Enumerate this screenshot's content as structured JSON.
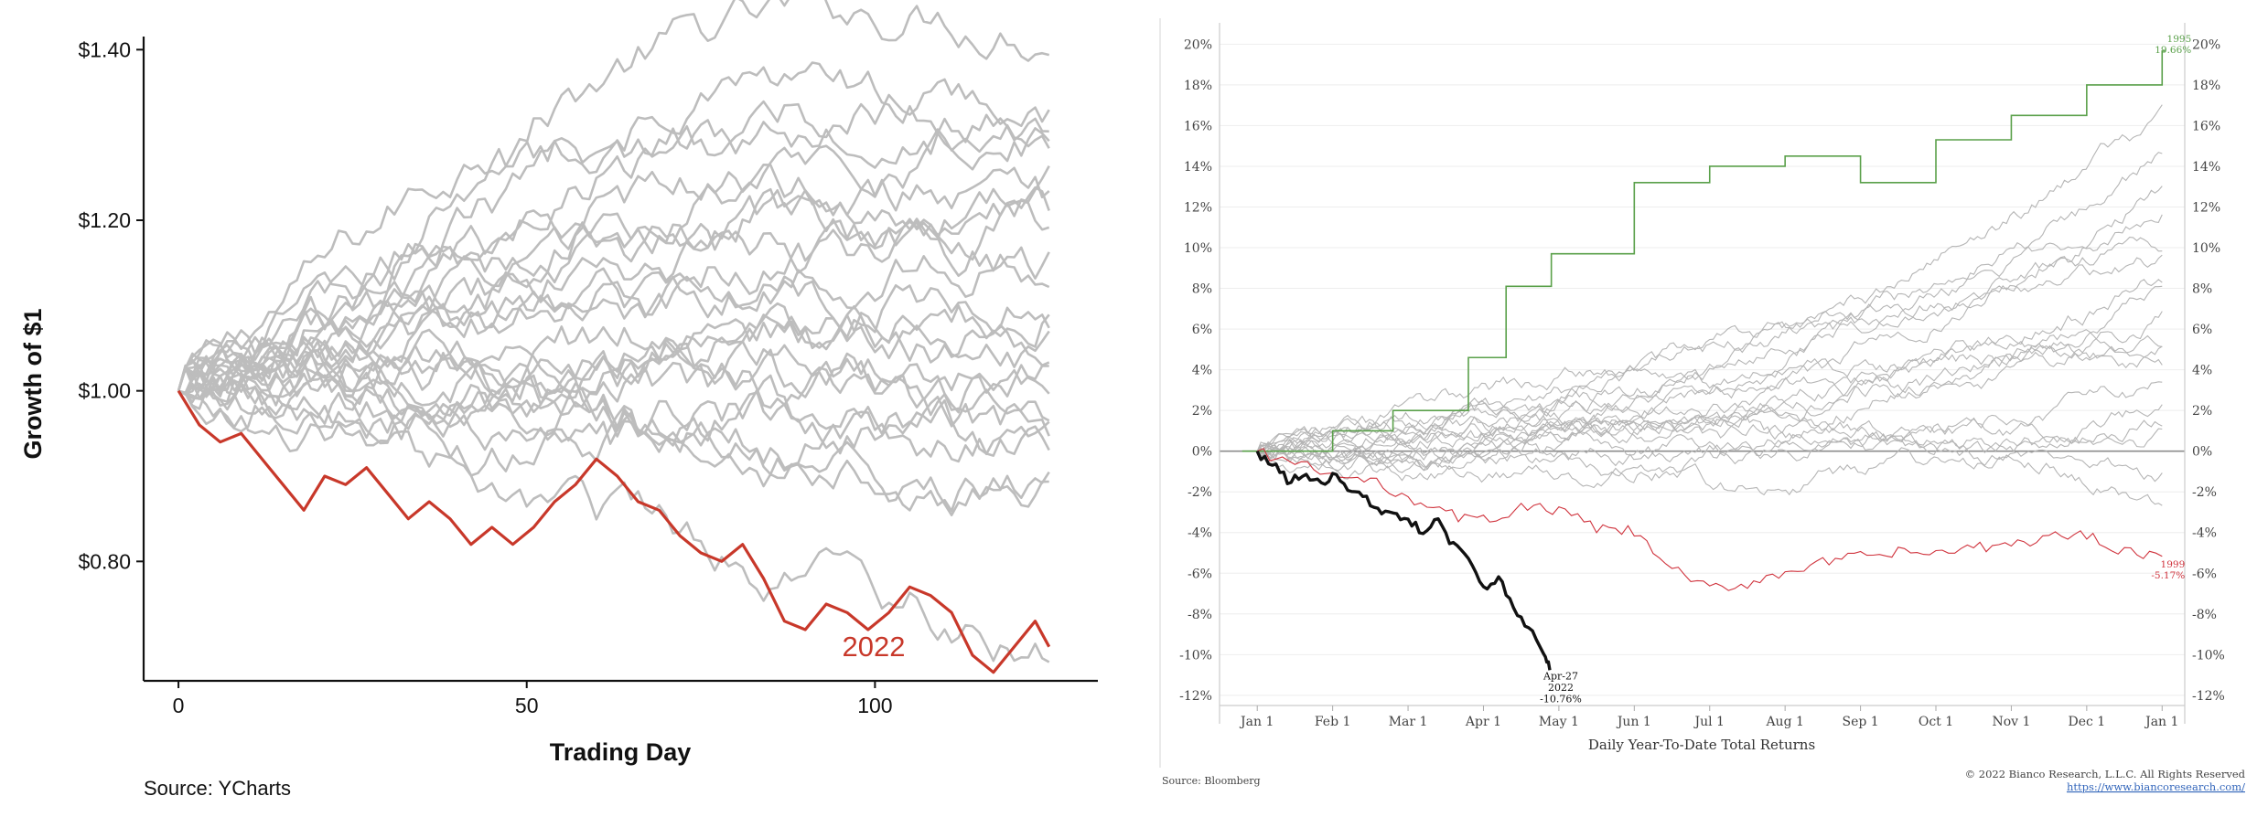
{
  "chart_data": [
    {
      "type": "line",
      "title": "",
      "xlabel": "Trading Day",
      "ylabel": "Growth of $1",
      "xlim": [
        -5,
        132
      ],
      "ylim": [
        0.66,
        1.41
      ],
      "x_ticks": [
        0,
        50,
        100
      ],
      "y_ticks": [
        0.8,
        1.0,
        1.2,
        1.4
      ],
      "y_tick_labels": [
        "$0.80",
        "$1.00",
        "$1.20",
        "$1.40"
      ],
      "grid": false,
      "source": "Source: YCharts",
      "highlight_series_label": "2022",
      "highlight_color": "#c8382a",
      "background_color": "#bdbdbd",
      "background_end_values": [
        1.28,
        1.25,
        1.22,
        1.2,
        1.19,
        1.18,
        1.16,
        1.15,
        1.13,
        1.12,
        1.1,
        1.08,
        1.06,
        1.05,
        1.03,
        1.01,
        0.99,
        0.97,
        0.96,
        0.95,
        0.93,
        0.9,
        0.88,
        0.74
      ],
      "background_peak_values": [
        1.35,
        1.22,
        1.18,
        1.25,
        1.12,
        1.3,
        1.16,
        1.1,
        1.2,
        1.08,
        1.14,
        1.05,
        1.1,
        1.02,
        1.06,
        1.0,
        1.04,
        0.98,
        1.02,
        0.96,
        1.0,
        0.95,
        0.97,
        0.9
      ],
      "series": [
        {
          "name": "2022",
          "x": [
            0,
            3,
            6,
            9,
            12,
            15,
            18,
            21,
            24,
            27,
            30,
            33,
            36,
            39,
            42,
            45,
            48,
            51,
            54,
            57,
            60,
            63,
            66,
            69,
            72,
            75,
            78,
            81,
            84,
            87,
            90,
            93,
            96,
            99,
            102,
            105,
            108,
            111,
            114,
            117,
            120,
            123,
            125
          ],
          "y": [
            1.0,
            0.96,
            0.94,
            0.95,
            0.92,
            0.89,
            0.86,
            0.9,
            0.89,
            0.91,
            0.88,
            0.85,
            0.87,
            0.85,
            0.82,
            0.84,
            0.82,
            0.84,
            0.87,
            0.89,
            0.92,
            0.9,
            0.87,
            0.86,
            0.83,
            0.81,
            0.8,
            0.82,
            0.78,
            0.73,
            0.72,
            0.75,
            0.74,
            0.72,
            0.74,
            0.77,
            0.76,
            0.74,
            0.69,
            0.67,
            0.7,
            0.73,
            0.7
          ]
        }
      ]
    },
    {
      "type": "line",
      "title": "",
      "xlabel": "Daily Year-To-Date Total Returns",
      "ylabel": "",
      "xlim": [
        -0.5,
        12.3
      ],
      "ylim": [
        -12.5,
        20.6
      ],
      "x_tick_labels": [
        "Jan 1",
        "Feb 1",
        "Mar 1",
        "Apr 1",
        "May 1",
        "Jun 1",
        "Jul 1",
        "Aug 1",
        "Sep 1",
        "Oct 1",
        "Nov 1",
        "Dec 1",
        "Jan 1"
      ],
      "y_ticks": [
        -12,
        -10,
        -8,
        -6,
        -4,
        -2,
        0,
        2,
        4,
        6,
        8,
        10,
        12,
        14,
        16,
        18,
        20
      ],
      "y_tick_labels": [
        "-12%",
        "-10%",
        "-8%",
        "-6%",
        "-4%",
        "-2%",
        "0%",
        "2%",
        "4%",
        "6%",
        "8%",
        "10%",
        "12%",
        "14%",
        "16%",
        "18%",
        "20%"
      ],
      "grid": true,
      "source": "Source: Bloomberg",
      "copyright": "© 2022 Bianco Research, L.L.C. All Rights Reserved",
      "url": "https://www.biancoresearch.com/",
      "background_color": "#b5b5b5",
      "background_end_values": [
        16.4,
        14.5,
        13.2,
        11.8,
        10.2,
        9.5,
        8.3,
        7.4,
        6.6,
        5.8,
        5.1,
        4.4,
        3.2,
        2.4,
        1.6,
        0.5,
        -1.2,
        -2.3
      ],
      "series": [
        {
          "name": "1995",
          "end_label": [
            "1995",
            "19.66%"
          ],
          "color": "#5aa04a",
          "steps": [
            [
              -0.2,
              0.0
            ],
            [
              1.0,
              1.0
            ],
            [
              1.8,
              2.0
            ],
            [
              2.8,
              4.6
            ],
            [
              3.3,
              8.1
            ],
            [
              3.9,
              9.7
            ],
            [
              5.0,
              13.2
            ],
            [
              6.0,
              14.0
            ],
            [
              7.0,
              14.5
            ],
            [
              8.0,
              13.2
            ],
            [
              9.0,
              15.3
            ],
            [
              10.0,
              16.5
            ],
            [
              11.0,
              18.0
            ],
            [
              12.0,
              19.66
            ]
          ]
        },
        {
          "name": "1999",
          "end_label": [
            "1999",
            "-5.17%"
          ],
          "color": "#d0333d",
          "x": [
            0,
            0.5,
            1.0,
            1.5,
            2.0,
            2.5,
            3.0,
            3.5,
            4.0,
            4.5,
            5.0,
            5.5,
            6.0,
            6.5,
            7.0,
            7.5,
            8.0,
            8.5,
            9.0,
            9.5,
            10.0,
            10.5,
            11.0,
            11.5,
            12.0
          ],
          "y": [
            0.0,
            -0.6,
            -1.2,
            -1.5,
            -2.2,
            -3.1,
            -3.4,
            -2.8,
            -2.9,
            -3.8,
            -4.0,
            -5.8,
            -6.8,
            -6.5,
            -5.9,
            -5.5,
            -5.2,
            -5.0,
            -5.0,
            -4.8,
            -4.6,
            -4.2,
            -4.1,
            -4.9,
            -5.17
          ]
        },
        {
          "name": "2022",
          "end_label": [
            "Apr-27",
            "2022",
            "-10.76%"
          ],
          "color": "#111111",
          "x": [
            0,
            0.2,
            0.4,
            0.6,
            0.8,
            1.0,
            1.2,
            1.4,
            1.6,
            1.8,
            2.0,
            2.2,
            2.4,
            2.6,
            2.8,
            3.0,
            3.2,
            3.4,
            3.6,
            3.8,
            3.88
          ],
          "y": [
            0.0,
            -0.7,
            -1.4,
            -1.2,
            -1.6,
            -1.2,
            -1.8,
            -2.3,
            -2.9,
            -3.0,
            -3.5,
            -3.9,
            -3.4,
            -4.6,
            -5.5,
            -6.9,
            -6.2,
            -7.7,
            -8.6,
            -10.0,
            -10.76
          ]
        }
      ]
    }
  ]
}
